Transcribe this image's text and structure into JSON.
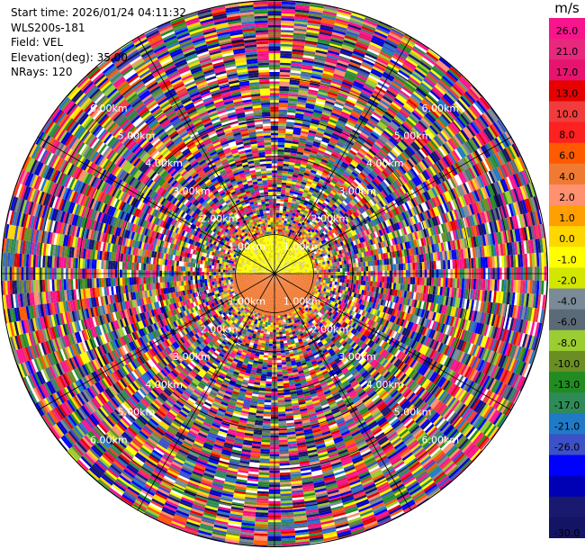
{
  "info": {
    "start_time": "Start time: 2026/01/24 04:11:32",
    "instrument": "WLS200s-181",
    "field": "Field: VEL",
    "elevation": "Elevation(deg): 35.00",
    "nrays": "NRays: 120"
  },
  "colorbar": {
    "unit": "m/s",
    "ticks": [
      "26.0",
      "21.0",
      "17.0",
      "13.0",
      "10.0",
      "8.0",
      "6.0",
      "4.0",
      "2.0",
      "1.0",
      "0.0",
      "-1.0",
      "-2.0",
      "-4.0",
      "-6.0",
      "-8.0",
      "-10.0",
      "-13.0",
      "-17.0",
      "-21.0",
      "-26.0",
      "-30.0"
    ],
    "colors": [
      "#f7148c",
      "#e8287d",
      "#e6146e",
      "#e60000",
      "#f03c3c",
      "#ff2020",
      "#ff5a00",
      "#f07a32",
      "#ff9070",
      "#ffa000",
      "#ffd700",
      "#ffff00",
      "#d2e600",
      "#7a8a96",
      "#5a6a76",
      "#9acd32",
      "#6b8e23",
      "#228b22",
      "#2e8b57",
      "#1f7ac8",
      "#3c50c8",
      "#0000ff",
      "#0000b4",
      "#191970",
      "#141464"
    ]
  },
  "chart_data": {
    "type": "ppi",
    "field": "VEL",
    "units": "m/s",
    "elevation_deg": 35.0,
    "nrays": 120,
    "range_rings_km": [
      1.0,
      2.0,
      3.0,
      4.0,
      5.0,
      6.0
    ],
    "range_ring_labels": [
      "1.00km",
      "2.00km",
      "3.00km",
      "4.00km",
      "5.00km",
      "6.00km"
    ],
    "max_range_km": 7.0,
    "near_field": {
      "north_half_approx_velocity": -1.5,
      "south_half_approx_velocity": 3.0,
      "extent_km": 1.1
    },
    "far_field": "noise (velocities spanning -30 to 26 m/s)"
  }
}
